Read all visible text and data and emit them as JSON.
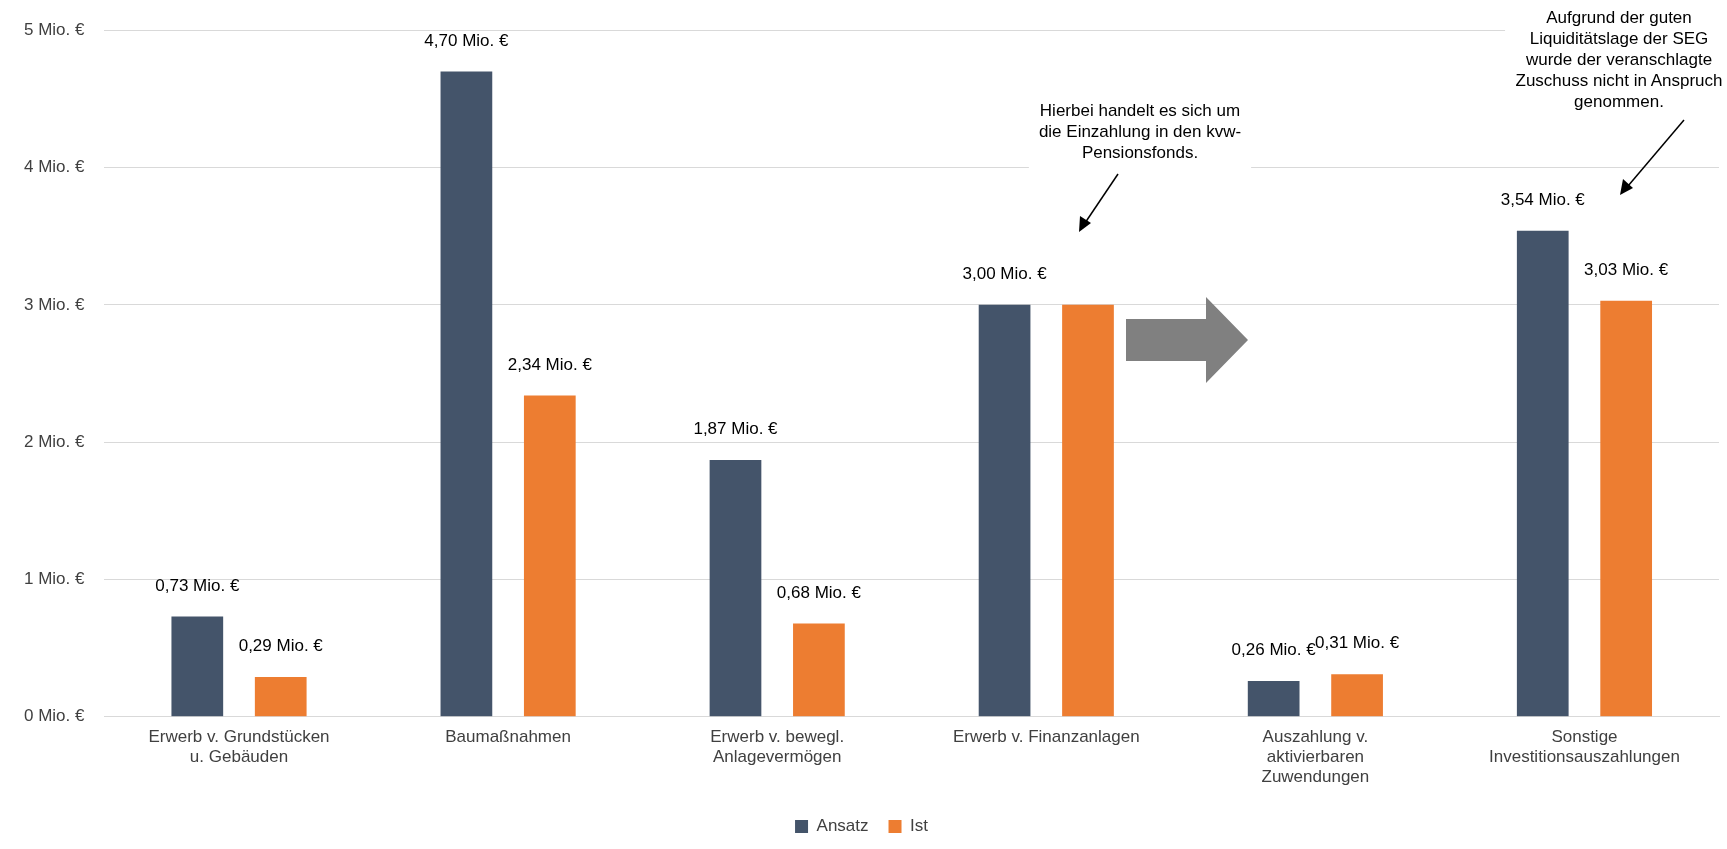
{
  "chart_data": {
    "type": "bar",
    "categories": [
      "Erwerb v. Grundstücken u. Gebäuden",
      "Baumaßnahmen",
      "Erwerb v. bewegl. Anlagevermögen",
      "Erwerb v. Finanzanlagen",
      "Auszahlung v. aktivierbaren Zuwendungen",
      "Sonstige Investitionsauszahlungen"
    ],
    "series": [
      {
        "name": "Ansatz",
        "color": "#44546a",
        "values": [
          0.73,
          4.7,
          1.87,
          3.0,
          0.26,
          3.54
        ],
        "value_labels": [
          "0,73 Mio. €",
          "4,70 Mio. €",
          "1,87 Mio. €",
          "3,00 Mio. €",
          "0,26 Mio. €",
          "3,54 Mio. €"
        ]
      },
      {
        "name": "Ist",
        "color": "#ed7d31",
        "values": [
          0.29,
          2.34,
          0.68,
          3.0,
          0.31,
          3.03
        ],
        "value_labels": [
          "0,29 Mio. €",
          "2,34 Mio. €",
          "0,68 Mio. €",
          null,
          "0,31 Mio. €",
          "3,03 Mio. €"
        ]
      }
    ],
    "ylim": [
      0,
      5
    ],
    "yticks": [
      {
        "value": 0,
        "label": "0 Mio. €"
      },
      {
        "value": 1,
        "label": "1 Mio. €"
      },
      {
        "value": 2,
        "label": "2 Mio. €"
      },
      {
        "value": 3,
        "label": "3 Mio. €"
      },
      {
        "value": 4,
        "label": "4 Mio. €"
      },
      {
        "value": 5,
        "label": "5 Mio. €"
      }
    ],
    "grid": "y",
    "legend": "bottom",
    "annotations": [
      "Hierbei handelt es sich um\ndie Einzahlung in den kvw-\nPensionsfonds.",
      "Aufgrund der guten\nLiquiditätslage der SEG\nwurde der veranschlagte\nZuschuss nicht in Anspruch\ngenommen."
    ]
  }
}
